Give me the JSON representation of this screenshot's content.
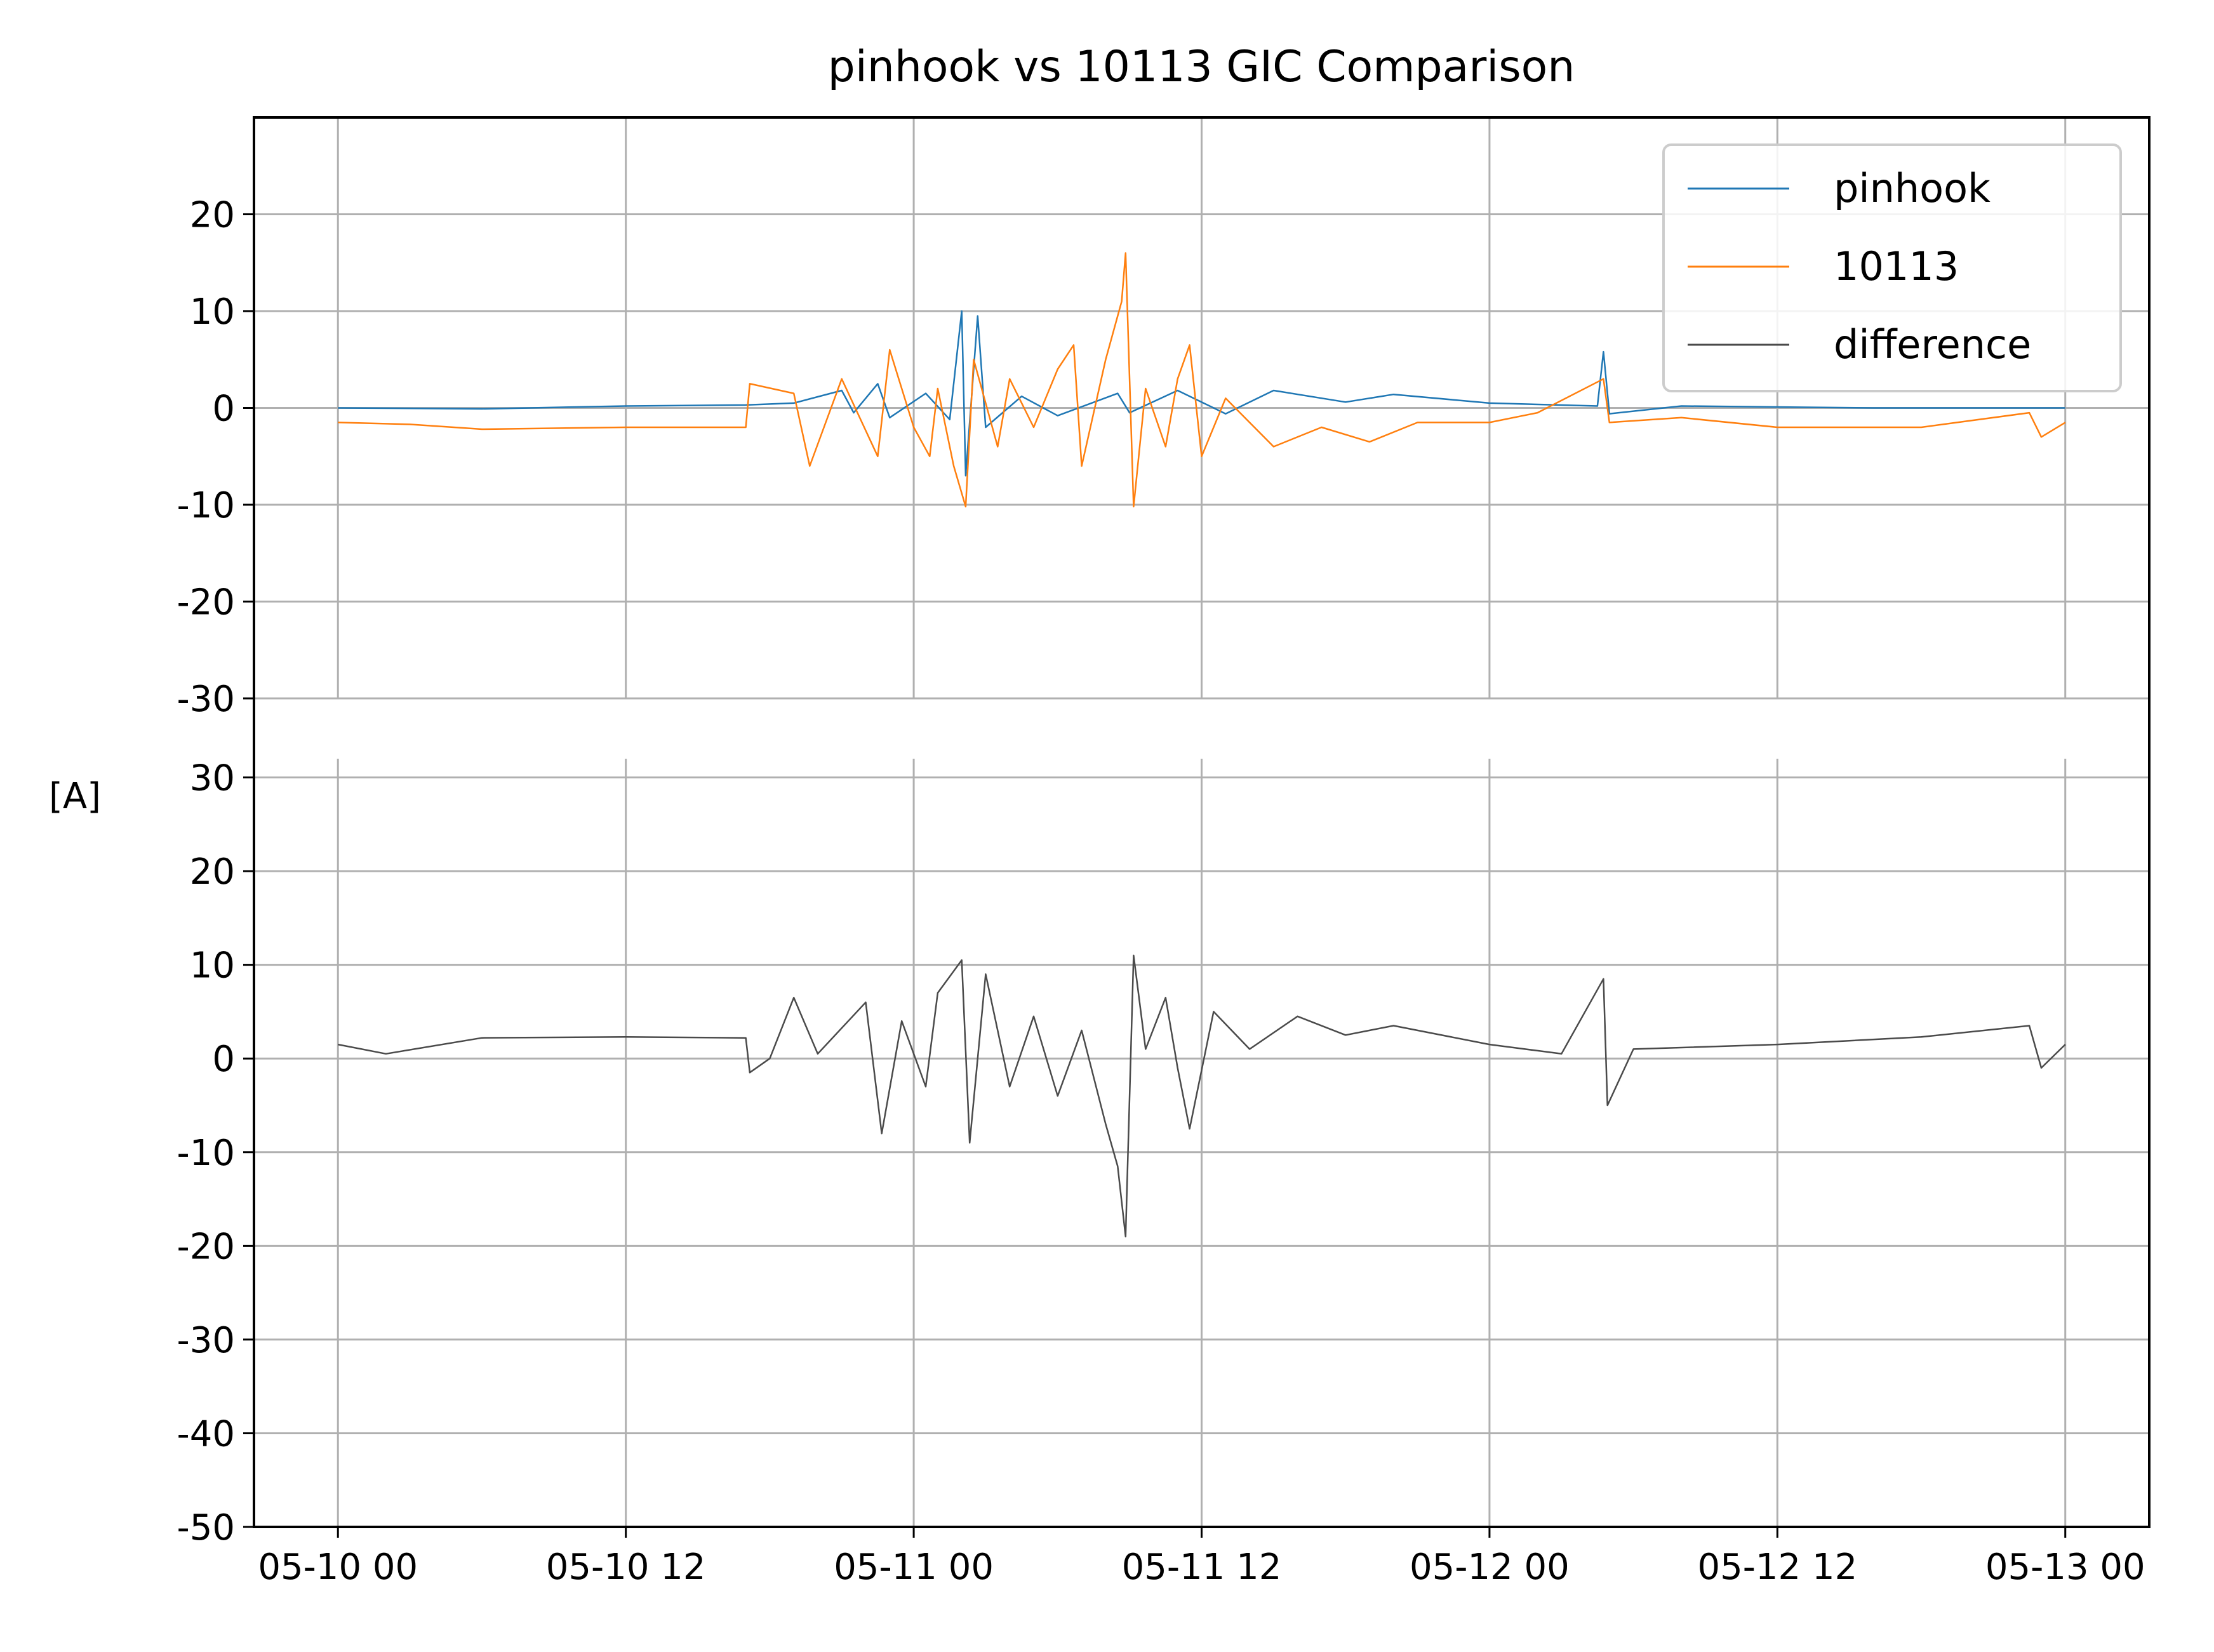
{
  "chart_data": {
    "type": "line",
    "title": "pinhook vs 10113 GIC Comparison",
    "ylabel": "[A]",
    "xlabel": "",
    "x_range": [
      "2024-05-09T20:30",
      "2024-05-13T03:30"
    ],
    "x_ticks": [
      {
        "value": "2024-05-10T00:00",
        "label": "05-10 00"
      },
      {
        "value": "2024-05-10T12:00",
        "label": "05-10 12"
      },
      {
        "value": "2024-05-11T00:00",
        "label": "05-11 00"
      },
      {
        "value": "2024-05-11T12:00",
        "label": "05-11 12"
      },
      {
        "value": "2024-05-12T00:00",
        "label": "05-12 00"
      },
      {
        "value": "2024-05-12T12:00",
        "label": "05-12 12"
      },
      {
        "value": "2024-05-13T00:00",
        "label": "05-13 00"
      }
    ],
    "grid": true,
    "legend_position": "top-right",
    "panels": [
      {
        "ylim": [
          -30,
          30
        ],
        "y_ticks": [
          {
            "value": 20,
            "label": "20"
          },
          {
            "value": 10,
            "label": "10"
          },
          {
            "value": 0,
            "label": "0"
          },
          {
            "value": -10,
            "label": "-10"
          },
          {
            "value": -20,
            "label": "-20"
          },
          {
            "value": -30,
            "label": "-30"
          }
        ],
        "series": [
          {
            "name": "pinhook",
            "color": "#1f77b4",
            "points": [
              [
                "2024-05-10T00:00",
                0.0
              ],
              [
                "2024-05-10T06:00",
                -0.1
              ],
              [
                "2024-05-10T12:00",
                0.2
              ],
              [
                "2024-05-10T17:00",
                0.3
              ],
              [
                "2024-05-10T19:00",
                0.5
              ],
              [
                "2024-05-10T21:00",
                1.8
              ],
              [
                "2024-05-10T21:30",
                -0.5
              ],
              [
                "2024-05-10T22:30",
                2.5
              ],
              [
                "2024-05-10T23:00",
                -1.0
              ],
              [
                "2024-05-11T00:30",
                1.5
              ],
              [
                "2024-05-11T01:30",
                -1.2
              ],
              [
                "2024-05-11T02:00",
                10.0
              ],
              [
                "2024-05-11T02:10",
                -7.0
              ],
              [
                "2024-05-11T02:40",
                9.5
              ],
              [
                "2024-05-11T03:00",
                -2.0
              ],
              [
                "2024-05-11T04:30",
                1.2
              ],
              [
                "2024-05-11T06:00",
                -0.8
              ],
              [
                "2024-05-11T08:30",
                1.5
              ],
              [
                "2024-05-11T09:00",
                -0.5
              ],
              [
                "2024-05-11T11:00",
                1.8
              ],
              [
                "2024-05-11T13:00",
                -0.6
              ],
              [
                "2024-05-11T15:00",
                1.8
              ],
              [
                "2024-05-11T18:00",
                0.6
              ],
              [
                "2024-05-11T20:00",
                1.4
              ],
              [
                "2024-05-12T00:00",
                0.5
              ],
              [
                "2024-05-12T04:30",
                0.2
              ],
              [
                "2024-05-12T04:45",
                5.8
              ],
              [
                "2024-05-12T05:00",
                -0.6
              ],
              [
                "2024-05-12T08:00",
                0.2
              ],
              [
                "2024-05-12T16:00",
                0.0
              ],
              [
                "2024-05-13T00:00",
                0.0
              ]
            ]
          },
          {
            "name": "10113",
            "color": "#ff7f0e",
            "points": [
              [
                "2024-05-10T00:00",
                -1.5
              ],
              [
                "2024-05-10T03:00",
                -1.7
              ],
              [
                "2024-05-10T06:00",
                -2.2
              ],
              [
                "2024-05-10T12:00",
                -2.0
              ],
              [
                "2024-05-10T17:00",
                -2.0
              ],
              [
                "2024-05-10T17:10",
                2.5
              ],
              [
                "2024-05-10T19:00",
                1.5
              ],
              [
                "2024-05-10T19:40",
                -6.0
              ],
              [
                "2024-05-10T21:00",
                3.0
              ],
              [
                "2024-05-10T22:30",
                -5.0
              ],
              [
                "2024-05-10T23:00",
                6.0
              ],
              [
                "2024-05-11T00:00",
                -2.0
              ],
              [
                "2024-05-11T00:40",
                -5.0
              ],
              [
                "2024-05-11T01:00",
                2.0
              ],
              [
                "2024-05-11T01:40",
                -6.0
              ],
              [
                "2024-05-11T02:10",
                -10.2
              ],
              [
                "2024-05-11T02:30",
                5.0
              ],
              [
                "2024-05-11T03:30",
                -4.0
              ],
              [
                "2024-05-11T04:00",
                3.0
              ],
              [
                "2024-05-11T05:00",
                -2.0
              ],
              [
                "2024-05-11T06:00",
                4.0
              ],
              [
                "2024-05-11T06:40",
                6.5
              ],
              [
                "2024-05-11T07:00",
                -6.0
              ],
              [
                "2024-05-11T08:00",
                5.0
              ],
              [
                "2024-05-11T08:40",
                11.0
              ],
              [
                "2024-05-11T08:50",
                16.0
              ],
              [
                "2024-05-11T09:10",
                -10.2
              ],
              [
                "2024-05-11T09:40",
                2.0
              ],
              [
                "2024-05-11T10:30",
                -4.0
              ],
              [
                "2024-05-11T11:00",
                3.0
              ],
              [
                "2024-05-11T11:30",
                6.5
              ],
              [
                "2024-05-11T12:00",
                -5.0
              ],
              [
                "2024-05-11T13:00",
                1.0
              ],
              [
                "2024-05-11T15:00",
                -4.0
              ],
              [
                "2024-05-11T17:00",
                -2.0
              ],
              [
                "2024-05-11T19:00",
                -3.5
              ],
              [
                "2024-05-11T21:00",
                -1.5
              ],
              [
                "2024-05-12T00:00",
                -1.5
              ],
              [
                "2024-05-12T02:00",
                -0.5
              ],
              [
                "2024-05-12T04:45",
                3.0
              ],
              [
                "2024-05-12T05:00",
                -1.5
              ],
              [
                "2024-05-12T08:00",
                -1.0
              ],
              [
                "2024-05-12T12:00",
                -2.0
              ],
              [
                "2024-05-12T18:00",
                -2.0
              ],
              [
                "2024-05-12T22:30",
                -0.5
              ],
              [
                "2024-05-12T23:00",
                -3.0
              ],
              [
                "2024-05-13T00:00",
                -1.5
              ]
            ]
          }
        ]
      },
      {
        "ylim": [
          -50,
          32
        ],
        "y_ticks": [
          {
            "value": 30,
            "label": "30"
          },
          {
            "value": 20,
            "label": "20"
          },
          {
            "value": 10,
            "label": "10"
          },
          {
            "value": 0,
            "label": "0"
          },
          {
            "value": -10,
            "label": "-10"
          },
          {
            "value": -20,
            "label": "-20"
          },
          {
            "value": -30,
            "label": "-30"
          },
          {
            "value": -40,
            "label": "-40"
          },
          {
            "value": -50,
            "label": "-50"
          }
        ],
        "series": [
          {
            "name": "difference",
            "color": "#4a4a4a",
            "points": [
              [
                "2024-05-10T00:00",
                1.5
              ],
              [
                "2024-05-10T02:00",
                0.5
              ],
              [
                "2024-05-10T06:00",
                2.2
              ],
              [
                "2024-05-10T12:00",
                2.3
              ],
              [
                "2024-05-10T17:00",
                2.2
              ],
              [
                "2024-05-10T17:10",
                -1.5
              ],
              [
                "2024-05-10T18:00",
                0.0
              ],
              [
                "2024-05-10T19:00",
                6.5
              ],
              [
                "2024-05-10T20:00",
                0.5
              ],
              [
                "2024-05-10T22:00",
                6.0
              ],
              [
                "2024-05-10T22:40",
                -8.0
              ],
              [
                "2024-05-10T23:30",
                4.0
              ],
              [
                "2024-05-11T00:30",
                -3.0
              ],
              [
                "2024-05-11T01:00",
                7.0
              ],
              [
                "2024-05-11T02:00",
                10.5
              ],
              [
                "2024-05-11T02:20",
                -9.0
              ],
              [
                "2024-05-11T03:00",
                9.0
              ],
              [
                "2024-05-11T04:00",
                -3.0
              ],
              [
                "2024-05-11T05:00",
                4.5
              ],
              [
                "2024-05-11T06:00",
                -4.0
              ],
              [
                "2024-05-11T07:00",
                3.0
              ],
              [
                "2024-05-11T08:00",
                -7.0
              ],
              [
                "2024-05-11T08:30",
                -11.5
              ],
              [
                "2024-05-11T08:50",
                -19.0
              ],
              [
                "2024-05-11T09:10",
                11.0
              ],
              [
                "2024-05-11T09:40",
                1.0
              ],
              [
                "2024-05-11T10:30",
                6.5
              ],
              [
                "2024-05-11T11:00",
                -1.0
              ],
              [
                "2024-05-11T11:30",
                -7.5
              ],
              [
                "2024-05-11T12:30",
                5.0
              ],
              [
                "2024-05-11T14:00",
                1.0
              ],
              [
                "2024-05-11T16:00",
                4.5
              ],
              [
                "2024-05-11T18:00",
                2.5
              ],
              [
                "2024-05-11T20:00",
                3.5
              ],
              [
                "2024-05-12T00:00",
                1.5
              ],
              [
                "2024-05-12T03:00",
                0.5
              ],
              [
                "2024-05-12T04:45",
                8.5
              ],
              [
                "2024-05-12T04:55",
                -5.0
              ],
              [
                "2024-05-12T06:00",
                1.0
              ],
              [
                "2024-05-12T12:00",
                1.5
              ],
              [
                "2024-05-12T18:00",
                2.3
              ],
              [
                "2024-05-12T22:30",
                3.5
              ],
              [
                "2024-05-12T23:00",
                -1.0
              ],
              [
                "2024-05-13T00:00",
                1.5
              ]
            ]
          }
        ]
      }
    ]
  }
}
